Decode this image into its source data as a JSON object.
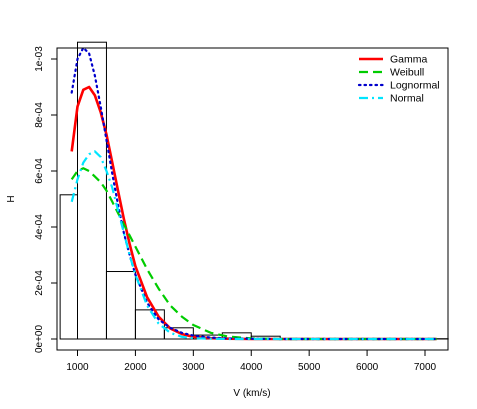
{
  "chart_data": {
    "type": "histogram",
    "title": "",
    "xlabel": "V (km/s)",
    "ylabel": "H",
    "xlim": [
      700,
      7400
    ],
    "ylim": [
      0,
      0.00105
    ],
    "xticks": [
      1000,
      2000,
      3000,
      4000,
      5000,
      6000,
      7000
    ],
    "xtick_labels": [
      "1000",
      "2000",
      "3000",
      "4000",
      "5000",
      "6000",
      "7000"
    ],
    "yticks": [
      0,
      0.0002,
      0.0004,
      0.0006,
      0.0008,
      0.001
    ],
    "ytick_labels": [
      "0e+00",
      "2e-04",
      "4e-04",
      "6e-04",
      "8e-04",
      "1e-03"
    ],
    "grid": false,
    "legend_position": "top-right",
    "histogram": {
      "bin_edges": [
        700,
        1000,
        1500,
        2000,
        2500,
        3000,
        3500,
        4000,
        4500,
        5000,
        5500,
        6000,
        6500,
        7000,
        7400
      ],
      "density": [
        0.000515,
        0.00106,
        0.000241,
        0.000104,
        4e-05,
        1.4e-05,
        2.2e-05,
        1e-05,
        2e-06,
        1e-06,
        0.0,
        0.0,
        0.0,
        1e-06
      ]
    },
    "series": [
      {
        "name": "Gamma",
        "color": "#ff0000",
        "dash": "solid",
        "x": [
          900,
          1000,
          1100,
          1200,
          1300,
          1400,
          1500,
          1600,
          1700,
          1800,
          1900,
          2000,
          2200,
          2400,
          2600,
          2800,
          3000,
          3300,
          3600,
          4000,
          4500,
          5000,
          6000,
          7200
        ],
        "y": [
          0.00067,
          0.00083,
          0.00089,
          0.0009,
          0.00087,
          0.00081,
          0.00073,
          0.00063,
          0.00053,
          0.00043,
          0.00034,
          0.00026,
          0.00015,
          8e-05,
          3.8e-05,
          1.8e-05,
          8e-06,
          3e-06,
          1e-06,
          0.0,
          0.0,
          0.0,
          0.0,
          0.0
        ]
      },
      {
        "name": "Weibull",
        "color": "#00cc00",
        "dash": "dashed",
        "x": [
          900,
          1000,
          1100,
          1200,
          1300,
          1400,
          1500,
          1600,
          1700,
          1800,
          1900,
          2000,
          2200,
          2400,
          2600,
          2800,
          3000,
          3300,
          3600,
          4000,
          4500,
          5000,
          6000,
          7200
        ],
        "y": [
          0.00057,
          0.0006,
          0.00061,
          0.0006,
          0.00058,
          0.00056,
          0.00053,
          0.00049,
          0.00045,
          0.00041,
          0.00037,
          0.00033,
          0.00025,
          0.00018,
          0.00012,
          8e-05,
          5e-05,
          2.2e-05,
          9e-06,
          2e-06,
          0.0,
          0.0,
          0.0,
          0.0
        ]
      },
      {
        "name": "Lognormal",
        "color": "#0000cc",
        "dash": "dotted",
        "x": [
          900,
          1000,
          1100,
          1200,
          1300,
          1400,
          1500,
          1600,
          1700,
          1800,
          1900,
          2000,
          2200,
          2400,
          2600,
          2800,
          3000,
          3300,
          3600,
          4000,
          4500,
          5000,
          6000,
          7200
        ],
        "y": [
          0.00088,
          0.001,
          0.00104,
          0.00102,
          0.00094,
          0.00083,
          0.00071,
          0.00059,
          0.00048,
          0.00038,
          0.0003,
          0.00023,
          0.00013,
          7e-05,
          4e-05,
          2.2e-05,
          1.2e-05,
          5e-06,
          2e-06,
          1e-06,
          0.0,
          0.0,
          0.0,
          0.0
        ]
      },
      {
        "name": "Normal",
        "color": "#00e5ff",
        "dash": "dashdot",
        "x": [
          900,
          1000,
          1100,
          1200,
          1300,
          1400,
          1500,
          1600,
          1700,
          1800,
          1900,
          2000,
          2200,
          2400,
          2600,
          2800,
          3000,
          3300,
          3600,
          4000,
          4500,
          5000,
          6000,
          7200
        ],
        "y": [
          0.00049,
          0.00057,
          0.00063,
          0.00066,
          0.00067,
          0.00065,
          0.0006,
          0.00054,
          0.00046,
          0.00038,
          0.0003,
          0.00023,
          0.00012,
          5.5e-05,
          2.2e-05,
          8e-06,
          3e-06,
          1e-06,
          0.0,
          0.0,
          0.0,
          0.0,
          0.0,
          0.0
        ]
      }
    ]
  }
}
